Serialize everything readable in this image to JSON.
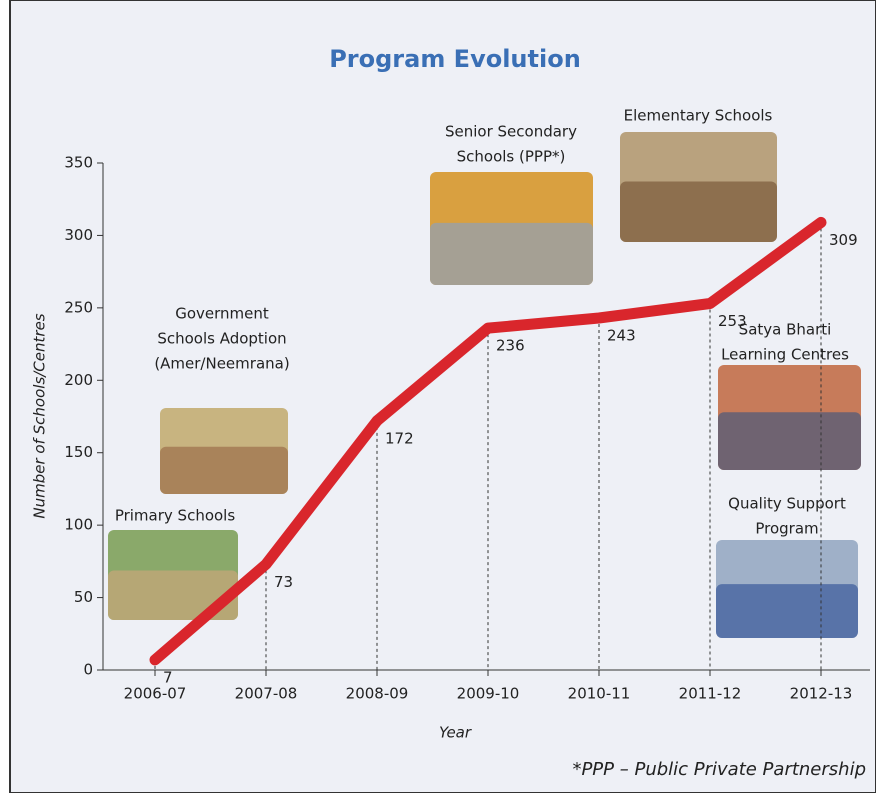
{
  "chart_data": {
    "type": "line",
    "title": "Program Evolution",
    "x_label": "Year",
    "y_label": "Number of Schools/Centres",
    "categories": [
      "2006-07",
      "2007-08",
      "2008-09",
      "2009-10",
      "2010-11",
      "2011-12",
      "2012-13"
    ],
    "values": [
      7,
      73,
      172,
      236,
      243,
      253,
      309
    ],
    "color": "#d9262c",
    "ylim": [
      0,
      350
    ],
    "yticks": [
      0,
      50,
      100,
      150,
      200,
      250,
      300,
      350
    ],
    "annotations": [
      [
        "Primary Schools"
      ],
      [
        "Government",
        "Schools Adoption",
        "(Amer/Neemrana)"
      ],
      [
        "Senior Secondary",
        "Schools (PPP*)"
      ],
      [
        "Elementary Schools"
      ],
      [
        "Satya Bharti",
        "Learning Centres"
      ],
      [
        "Quality Support",
        "Program"
      ]
    ],
    "footnote": "*PPP – Public Private Partnership"
  }
}
